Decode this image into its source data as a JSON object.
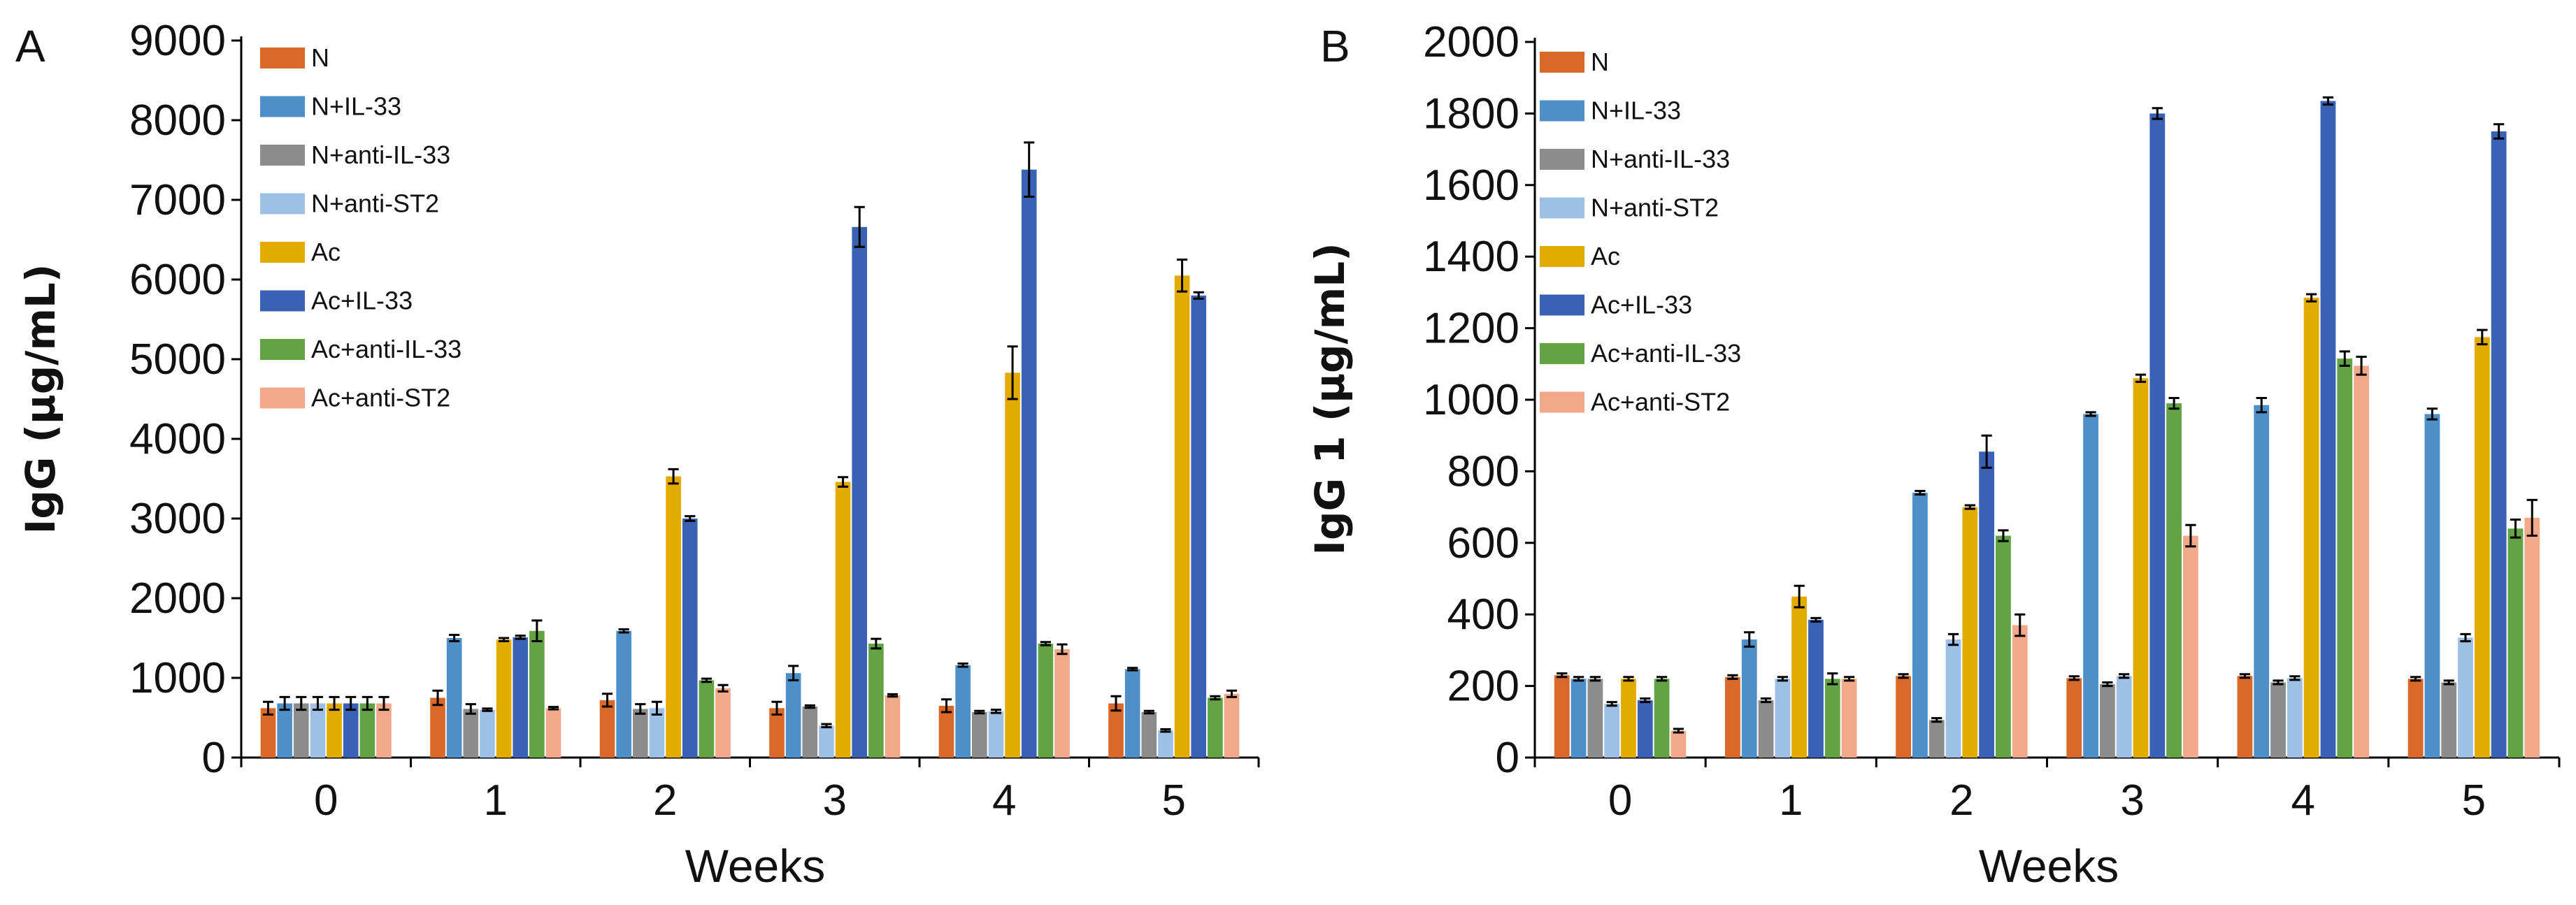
{
  "chart_data": [
    {
      "type": "bar",
      "panel": "A",
      "ylabel": "IgG (µg/mL)",
      "xlabel": "Weeks",
      "ylim": [
        0,
        9000
      ],
      "yticks": [
        0,
        1000,
        2000,
        3000,
        4000,
        5000,
        6000,
        7000,
        8000,
        9000
      ],
      "categories": [
        "0",
        "1",
        "2",
        "3",
        "4",
        "5"
      ],
      "legend_position": "top-left",
      "series": [
        {
          "name": "N",
          "color": "#D9692A",
          "values": [
            620,
            750,
            720,
            620,
            650,
            680
          ],
          "errors": [
            80,
            90,
            80,
            80,
            80,
            90
          ]
        },
        {
          "name": "N+IL-33",
          "color": "#4F8FC8",
          "values": [
            680,
            1500,
            1590,
            1060,
            1160,
            1110
          ],
          "errors": [
            80,
            40,
            20,
            90,
            20,
            15
          ]
        },
        {
          "name": "N+anti-IL-33",
          "color": "#8C8C8C",
          "values": [
            680,
            610,
            610,
            640,
            570,
            570
          ],
          "errors": [
            80,
            60,
            60,
            15,
            15,
            15
          ]
        },
        {
          "name": "N+anti-ST2",
          "color": "#9EC0E6",
          "values": [
            680,
            600,
            620,
            400,
            580,
            340
          ],
          "errors": [
            80,
            15,
            80,
            20,
            20,
            15
          ]
        },
        {
          "name": "Ac",
          "color": "#E3AA00",
          "values": [
            680,
            1480,
            3530,
            3460,
            4830,
            6050
          ],
          "errors": [
            80,
            20,
            90,
            60,
            330,
            200
          ]
        },
        {
          "name": "Ac+IL-33",
          "color": "#3A62B4",
          "values": [
            680,
            1510,
            3000,
            6660,
            7380,
            5800
          ],
          "errors": [
            80,
            20,
            30,
            250,
            340,
            40
          ]
        },
        {
          "name": "Ac+anti-IL-33",
          "color": "#63A346",
          "values": [
            680,
            1590,
            970,
            1430,
            1430,
            750
          ],
          "errors": [
            80,
            130,
            20,
            60,
            20,
            20
          ]
        },
        {
          "name": "Ac+anti-ST2",
          "color": "#F2A98A",
          "values": [
            680,
            620,
            870,
            780,
            1360,
            800
          ],
          "errors": [
            80,
            15,
            40,
            15,
            60,
            40
          ]
        }
      ]
    },
    {
      "type": "bar",
      "panel": "B",
      "ylabel": "IgG 1 (µg/mL)",
      "xlabel": "Weeks",
      "ylim": [
        0,
        2000
      ],
      "yticks": [
        0,
        200,
        400,
        600,
        800,
        1000,
        1200,
        1400,
        1600,
        1800,
        2000
      ],
      "categories": [
        "0",
        "1",
        "2",
        "3",
        "4",
        "5"
      ],
      "legend_position": "top-left",
      "series": [
        {
          "name": "N",
          "color": "#D9692A",
          "values": [
            230,
            225,
            228,
            222,
            228,
            220
          ],
          "errors": [
            5,
            5,
            5,
            5,
            5,
            5
          ]
        },
        {
          "name": "N+IL-33",
          "color": "#4F8FC8",
          "values": [
            220,
            330,
            740,
            960,
            985,
            960
          ],
          "errors": [
            5,
            20,
            5,
            5,
            20,
            15
          ]
        },
        {
          "name": "N+anti-IL-33",
          "color": "#8C8C8C",
          "values": [
            220,
            160,
            105,
            205,
            210,
            210
          ],
          "errors": [
            5,
            5,
            5,
            5,
            5,
            5
          ]
        },
        {
          "name": "N+anti-ST2",
          "color": "#9EC0E6",
          "values": [
            150,
            220,
            330,
            228,
            222,
            335
          ],
          "errors": [
            5,
            5,
            15,
            5,
            5,
            10
          ]
        },
        {
          "name": "Ac",
          "color": "#E3AA00",
          "values": [
            220,
            450,
            700,
            1060,
            1285,
            1175
          ],
          "errors": [
            5,
            30,
            5,
            10,
            10,
            20
          ]
        },
        {
          "name": "Ac+IL-33",
          "color": "#3A62B4",
          "values": [
            160,
            385,
            855,
            1800,
            1835,
            1750
          ],
          "errors": [
            5,
            5,
            45,
            15,
            10,
            20
          ]
        },
        {
          "name": "Ac+anti-IL-33",
          "color": "#63A346",
          "values": [
            220,
            220,
            620,
            990,
            1115,
            640
          ],
          "errors": [
            5,
            15,
            15,
            15,
            20,
            25
          ]
        },
        {
          "name": "Ac+anti-ST2",
          "color": "#F2A98A",
          "values": [
            75,
            220,
            370,
            620,
            1095,
            670
          ],
          "errors": [
            5,
            5,
            30,
            30,
            25,
            50
          ]
        }
      ]
    }
  ]
}
